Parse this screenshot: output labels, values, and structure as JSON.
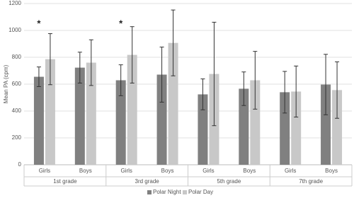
{
  "chart_data": {
    "type": "bar",
    "y_label": "Mean PA (cpm)",
    "categories": [
      "Girls",
      "Boys",
      "Girls",
      "Boys",
      "Girls",
      "Boys",
      "Girls",
      "Boys"
    ],
    "groups": [
      "1st grade",
      "3rd grade",
      "5th grade",
      "7th grade"
    ],
    "significance": [
      "*",
      null,
      "*",
      null,
      null,
      null,
      null,
      null
    ],
    "series": [
      {
        "name": "Polar Night",
        "color": "#808080",
        "values": [
          655,
          723,
          629,
          671,
          524,
          566,
          540,
          597
        ],
        "errors": [
          73,
          115,
          115,
          205,
          115,
          125,
          155,
          225
        ]
      },
      {
        "name": "Polar Day",
        "color": "#c8c8c8",
        "values": [
          786,
          760,
          818,
          907,
          676,
          629,
          545,
          556
        ],
        "errors": [
          190,
          170,
          210,
          245,
          385,
          215,
          190,
          210
        ]
      }
    ],
    "ylim": [
      0,
      1200
    ],
    "yticks": [
      0,
      200,
      400,
      600,
      800,
      1000,
      1200
    ],
    "grid": true,
    "legend": "bottom"
  }
}
